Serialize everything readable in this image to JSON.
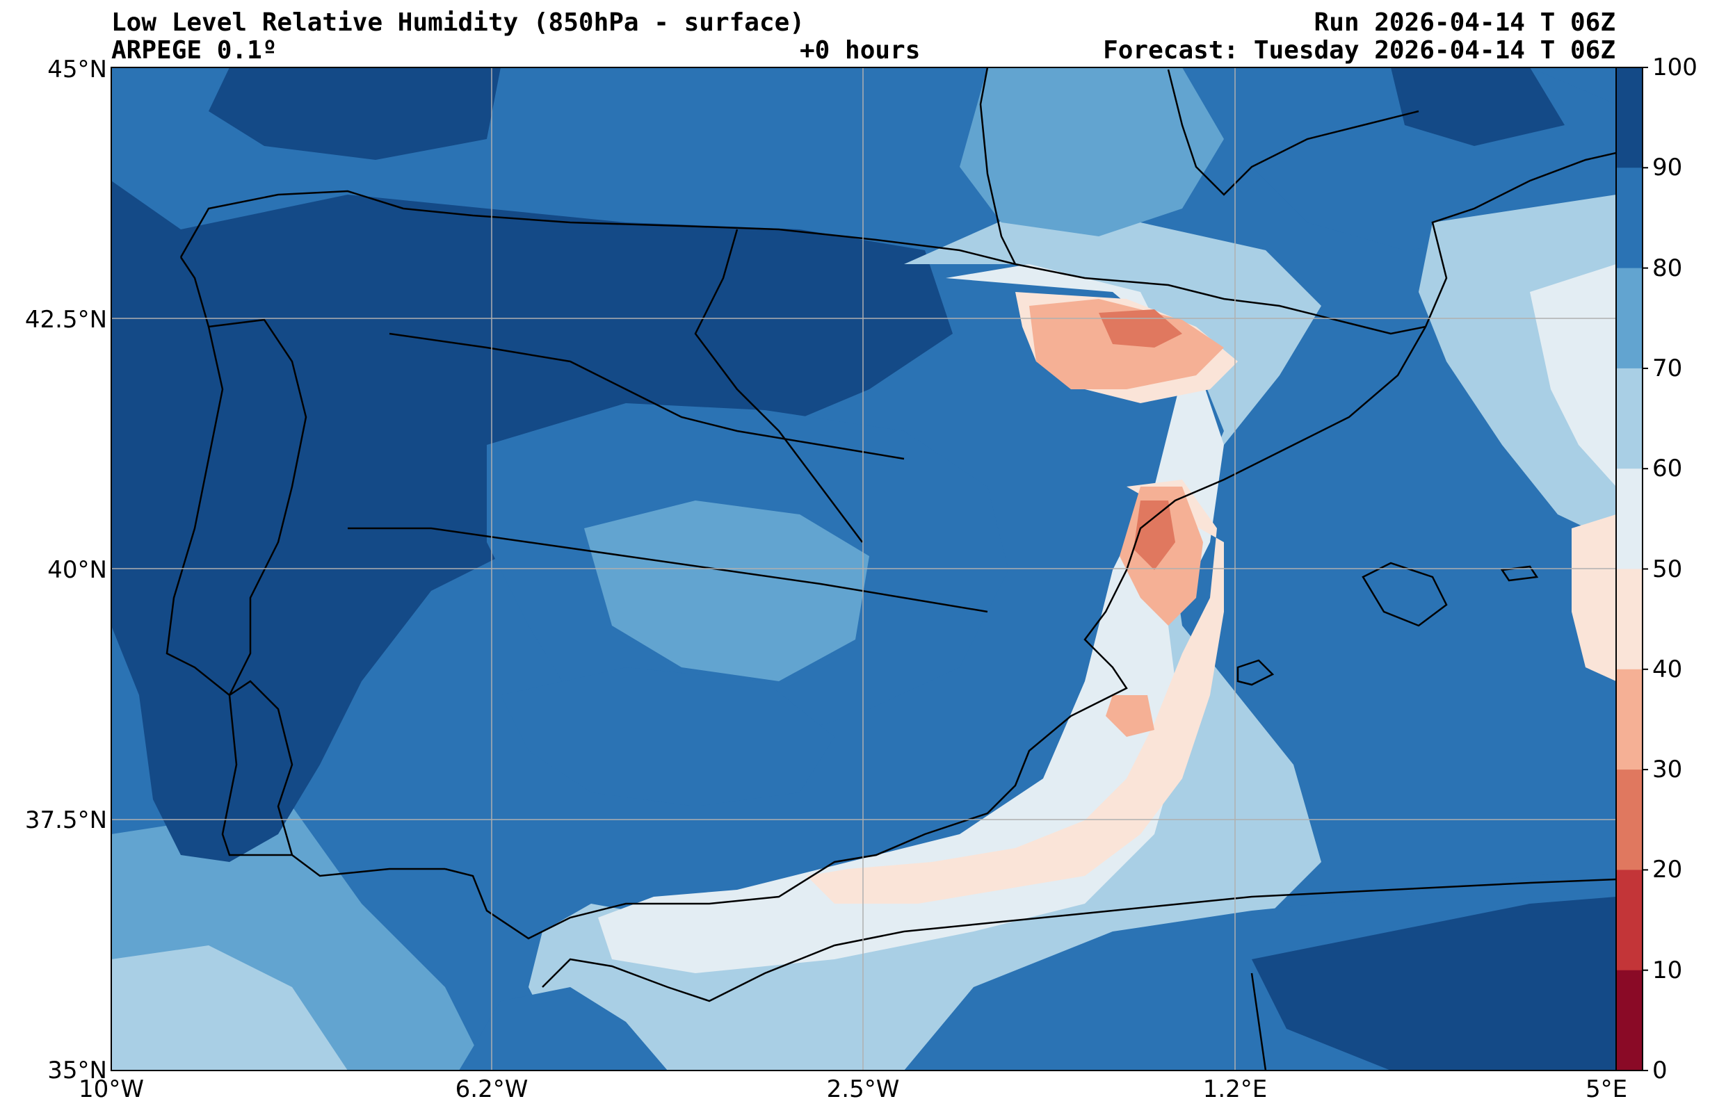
{
  "header": {
    "title": "Low Level Relative Humidity (850hPa - surface)",
    "model": "ARPEGE 0.1º",
    "lead_time": "+0 hours",
    "run": "Run 2026-04-14 T 06Z",
    "forecast": "Forecast: Tuesday 2026-04-14 T 06Z"
  },
  "map": {
    "lat_ticks": [
      "45°N",
      "42.5°N",
      "40°N",
      "37.5°N",
      "35°N"
    ],
    "lon_ticks": [
      "10°W",
      "6.2°W",
      "2.5°W",
      "1.2°E",
      "5°E"
    ]
  },
  "colorbar": {
    "labels": [
      "100",
      "90",
      "80",
      "70",
      "60",
      "50",
      "40",
      "30",
      "20",
      "10",
      "0"
    ],
    "colors": [
      "#144a87",
      "#2b73b4",
      "#62a4d0",
      "#a9cfe5",
      "#e3edf3",
      "#fae4d8",
      "#f5b095",
      "#e0785f",
      "#c33538",
      "#8a0a26"
    ]
  },
  "palette": {
    "rh_90_100": "#144a87",
    "rh_80_90": "#2b73b4",
    "rh_70_80": "#62a4d0",
    "rh_60_70": "#a9cfe5",
    "rh_50_60": "#e3edf3",
    "rh_40_50": "#fae4d8",
    "rh_30_40": "#f5b095",
    "rh_20_30": "#e0785f",
    "gridline": "#b0b0b0",
    "border": "#000000"
  }
}
